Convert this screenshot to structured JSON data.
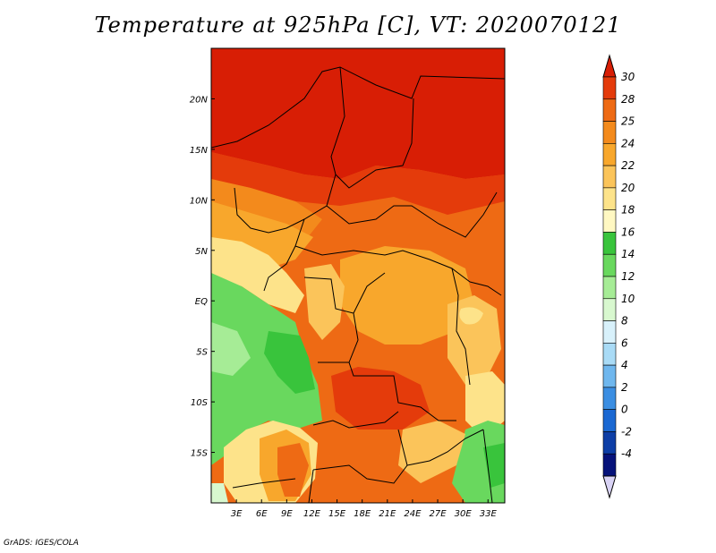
{
  "title": "Temperature at 925hPa [C], VT: 2020070121",
  "credit": "GrADS: IGES/COLA",
  "map": {
    "lon_range": [
      0,
      35
    ],
    "lat_range": [
      -20,
      25
    ],
    "lon_ticks": [
      "3E",
      "6E",
      "9E",
      "12E",
      "15E",
      "18E",
      "21E",
      "24E",
      "27E",
      "30E",
      "33E"
    ],
    "lat_ticks": [
      "20N",
      "15N",
      "10N",
      "5N",
      "EQ",
      "5S",
      "10S",
      "15S"
    ]
  },
  "colorbar": {
    "levels": [
      "30",
      "28",
      "25",
      "24",
      "22",
      "20",
      "18",
      "16",
      "14",
      "12",
      "10",
      "8",
      "6",
      "4",
      "2",
      "0",
      "-2",
      "-4"
    ],
    "colors": [
      "#d81e05",
      "#e43b0b",
      "#ee6a14",
      "#f38a1c",
      "#f8a72c",
      "#fbc45a",
      "#fde38a",
      "#fff8c2",
      "#39c43c",
      "#69d85e",
      "#a6ec96",
      "#d8f8cf",
      "#d8f1fb",
      "#a9dbf6",
      "#6fb7ee",
      "#3b8ee2",
      "#1a68d2",
      "#0d3ea6",
      "#06127a",
      "#d9d3f5"
    ]
  }
}
